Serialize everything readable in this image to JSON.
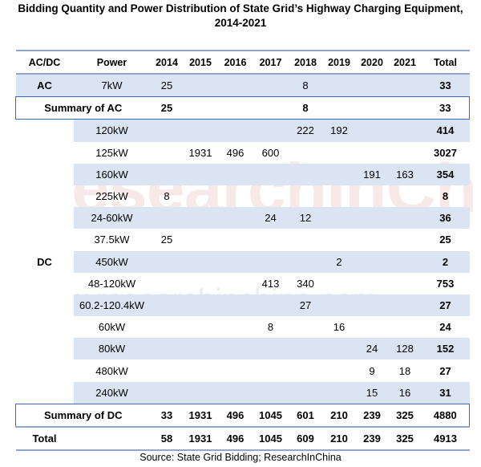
{
  "title_line1": "Bidding Quantity and Power Distribution of State Grid’s Highway Charging Equipment,",
  "title_line2": "2014-2021",
  "watermark": "ResearchInChina",
  "watermark_url": "www.researchinchina.com",
  "source": "Source: State Grid Bidding; ResearchInChina",
  "colors": {
    "band": "#dbe4f3",
    "rule": "#8ea6cc",
    "summary_border": "#3a66c4"
  },
  "chart_data": {
    "type": "table",
    "title": "Bidding Quantity and Power Distribution of State Grid’s Highway Charging Equipment, 2014-2021",
    "columns": [
      "AC/DC",
      "Power",
      "2014",
      "2015",
      "2016",
      "2017",
      "2018",
      "2019",
      "2020",
      "2021",
      "Total"
    ],
    "rows": [
      {
        "cat": "AC",
        "power": "7kW",
        "values": [
          "25",
          "",
          "",
          "",
          "8",
          "",
          "",
          ""
        ],
        "total": "33",
        "kind": "data",
        "band": true
      },
      {
        "cat": "",
        "power": "Summary of AC",
        "values": [
          "25",
          "",
          "",
          "",
          "8",
          "",
          "",
          ""
        ],
        "total": "33",
        "kind": "summary",
        "band": false
      },
      {
        "cat": "",
        "power": "120kW",
        "values": [
          "",
          "",
          "",
          "",
          "222",
          "192",
          "",
          ""
        ],
        "total": "414",
        "kind": "data",
        "band": true
      },
      {
        "cat": "",
        "power": "125kW",
        "values": [
          "",
          "1931",
          "496",
          "600",
          "",
          "",
          "",
          ""
        ],
        "total": "3027",
        "kind": "data",
        "band": false
      },
      {
        "cat": "",
        "power": "160kW",
        "values": [
          "",
          "",
          "",
          "",
          "",
          "",
          "191",
          "163"
        ],
        "total": "354",
        "kind": "data",
        "band": true
      },
      {
        "cat": "",
        "power": "225kW",
        "values": [
          "8",
          "",
          "",
          "",
          "",
          "",
          "",
          ""
        ],
        "total": "8",
        "kind": "data",
        "band": false
      },
      {
        "cat": "",
        "power": "24-60kW",
        "values": [
          "",
          "",
          "",
          "24",
          "12",
          "",
          "",
          ""
        ],
        "total": "36",
        "kind": "data",
        "band": true
      },
      {
        "cat": "",
        "power": "37.5kW",
        "values": [
          "25",
          "",
          "",
          "",
          "",
          "",
          "",
          ""
        ],
        "total": "25",
        "kind": "data",
        "band": false
      },
      {
        "cat": "DC",
        "power": "450kW",
        "values": [
          "",
          "",
          "",
          "",
          "",
          "2",
          "",
          ""
        ],
        "total": "2",
        "kind": "data",
        "band": true
      },
      {
        "cat": "",
        "power": "48-120kW",
        "values": [
          "",
          "",
          "",
          "413",
          "340",
          "",
          "",
          ""
        ],
        "total": "753",
        "kind": "data",
        "band": false
      },
      {
        "cat": "",
        "power": "60.2-120.4kW",
        "values": [
          "",
          "",
          "",
          "",
          "27",
          "",
          "",
          ""
        ],
        "total": "27",
        "kind": "data",
        "band": true
      },
      {
        "cat": "",
        "power": "60kW",
        "values": [
          "",
          "",
          "",
          "8",
          "",
          "16",
          "",
          ""
        ],
        "total": "24",
        "kind": "data",
        "band": false
      },
      {
        "cat": "",
        "power": "80kW",
        "values": [
          "",
          "",
          "",
          "",
          "",
          "",
          "24",
          "128"
        ],
        "total": "152",
        "kind": "data",
        "band": true
      },
      {
        "cat": "",
        "power": "480kW",
        "values": [
          "",
          "",
          "",
          "",
          "",
          "",
          "9",
          "18"
        ],
        "total": "27",
        "kind": "data",
        "band": false
      },
      {
        "cat": "",
        "power": "240kW",
        "values": [
          "",
          "",
          "",
          "",
          "",
          "",
          "15",
          "16"
        ],
        "total": "31",
        "kind": "data",
        "band": true
      },
      {
        "cat": "",
        "power": "Summary of DC",
        "values": [
          "33",
          "1931",
          "496",
          "1045",
          "601",
          "210",
          "239",
          "325"
        ],
        "total": "4880",
        "kind": "summary",
        "band": false
      },
      {
        "cat": "Total",
        "power": "",
        "values": [
          "58",
          "1931",
          "496",
          "1045",
          "609",
          "210",
          "239",
          "325"
        ],
        "total": "4913",
        "kind": "total",
        "band": false
      }
    ]
  }
}
